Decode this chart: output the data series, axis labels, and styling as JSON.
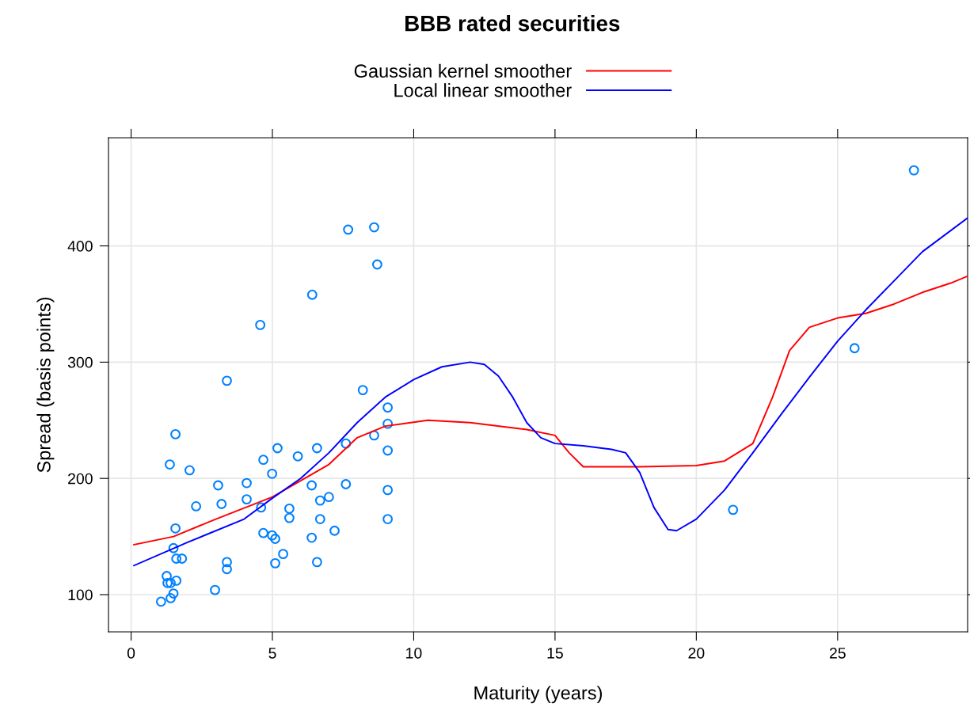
{
  "chart_data": {
    "type": "scatter",
    "title": "BBB rated securities",
    "xlabel": "Maturity (years)",
    "ylabel": "Spread (basis points)",
    "xlim": [
      -0.8,
      29.6
    ],
    "ylim": [
      68,
      493
    ],
    "xticks": [
      0,
      5,
      10,
      15,
      20,
      25
    ],
    "yticks": [
      100,
      200,
      300,
      400
    ],
    "grid": true,
    "legend": "top",
    "series": [
      {
        "color": "#0080ff",
        "marker": "circle",
        "x": [
          1.06,
          1.26,
          1.29,
          1.4,
          1.4,
          1.5,
          1.6,
          1.5,
          1.6,
          1.8,
          1.57,
          1.37,
          1.57,
          2.07,
          2.3,
          2.97,
          3.08,
          3.2,
          3.39,
          3.39,
          3.39,
          4.09,
          4.09,
          4.57,
          4.6,
          4.68,
          4.68,
          4.99,
          4.99,
          5.1,
          5.1,
          5.18,
          5.38,
          5.6,
          5.6,
          5.9,
          6.39,
          6.39,
          6.41,
          6.58,
          6.58,
          6.69,
          6.69,
          7.0,
          7.2,
          7.6,
          7.6,
          7.68,
          8.2,
          8.6,
          8.6,
          8.71,
          9.08,
          9.08,
          9.08,
          9.08,
          9.08,
          21.3,
          25.6,
          27.7
        ],
        "values": [
          94,
          116,
          110,
          110,
          97,
          101,
          112,
          140,
          131,
          131,
          157,
          212,
          238,
          207,
          176,
          104,
          194,
          178,
          284,
          128,
          122,
          196,
          182,
          332,
          175,
          216,
          153,
          204,
          151,
          148,
          127,
          226,
          135,
          174,
          166,
          219,
          194,
          149,
          358,
          226,
          128,
          181,
          165,
          184,
          155,
          230,
          195,
          414,
          276,
          237,
          416,
          384,
          261,
          247,
          224,
          190,
          165,
          173,
          312,
          465
        ]
      },
      {
        "type": "line",
        "name": "Gaussian kernel smoother",
        "color": "#ff0000",
        "x": [
          0.1,
          1.5,
          3,
          5,
          7,
          8,
          9,
          10.5,
          12,
          14,
          15,
          15.5,
          16,
          18,
          20,
          21,
          22,
          22.7,
          23.3,
          24,
          25,
          26,
          27,
          28,
          29,
          29.6
        ],
        "values": [
          143,
          150,
          165,
          184,
          212,
          235,
          245,
          250,
          248,
          242,
          237,
          222,
          210,
          210,
          211,
          215,
          230,
          270,
          310,
          330,
          338,
          342,
          350,
          360,
          368,
          374
        ]
      },
      {
        "type": "line",
        "name": "Local linear smoother",
        "color": "#0000ff",
        "x": [
          0.1,
          2,
          4,
          5,
          6,
          7,
          8,
          9,
          10,
          11,
          12,
          12.5,
          13,
          13.5,
          14,
          14.5,
          15,
          16,
          17,
          17.5,
          18,
          18.5,
          19,
          19.3,
          20,
          21,
          22,
          23,
          24,
          25,
          26,
          27,
          28,
          29.6
        ],
        "values": [
          125,
          145,
          165,
          183,
          200,
          222,
          248,
          270,
          285,
          296,
          300,
          298,
          288,
          270,
          248,
          235,
          230,
          228,
          225,
          222,
          205,
          175,
          156,
          155,
          165,
          190,
          222,
          255,
          287,
          318,
          345,
          370,
          395,
          424
        ]
      }
    ]
  }
}
